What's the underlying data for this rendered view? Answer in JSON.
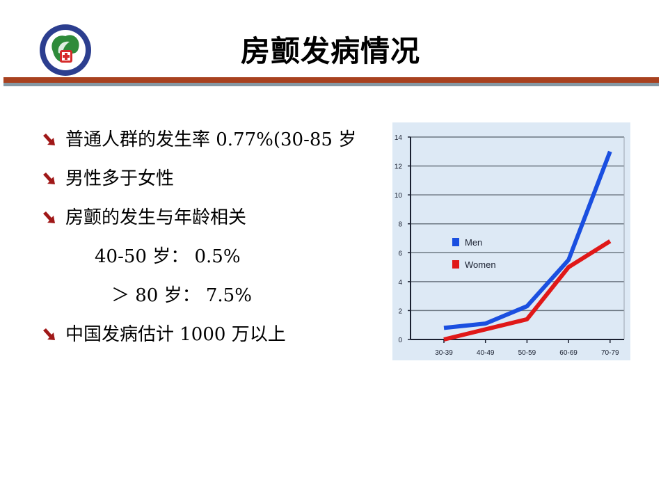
{
  "slide": {
    "title": "房颤发病情况",
    "logo": {
      "icon": "hospital-logo-icon",
      "colors": {
        "ring": "#2c3e8f",
        "leaf": "#2e8b3a",
        "cross": "#d62a2a"
      }
    },
    "divider": {
      "top_color": "#a8411f",
      "bottom_color": "#8598a4"
    },
    "bullets": [
      {
        "type": "bullet",
        "text": "普通人群的发生率 0.77%(30-85 岁"
      },
      {
        "type": "bullet",
        "text": "男性多于女性"
      },
      {
        "type": "bullet",
        "text": "房颤的发生与年龄相关"
      },
      {
        "type": "sub",
        "text": "40-50 岁：  0.5%"
      },
      {
        "type": "sub",
        "text": "＞ 80 岁：  7.5%"
      },
      {
        "type": "bullet",
        "text": "中国发病估计 1000 万以上"
      }
    ],
    "bullet_icon": "arrow-down-right-icon",
    "bullet_color": "#a01818"
  },
  "chart_data": {
    "type": "line",
    "title": "",
    "xlabel": "",
    "ylabel": "",
    "categories": [
      "30-39",
      "40-49",
      "50-59",
      "60-69",
      "70-79"
    ],
    "series": [
      {
        "name": "Men",
        "color": "#1a4fe0",
        "values": [
          0.8,
          1.1,
          2.3,
          5.5,
          13.0
        ]
      },
      {
        "name": "Women",
        "color": "#e01818",
        "values": [
          0.0,
          0.7,
          1.4,
          5.0,
          6.8
        ]
      }
    ],
    "yticks": [
      "0",
      "2",
      "4",
      "6",
      "8",
      "10",
      "12",
      "14"
    ],
    "ylim": [
      0,
      14
    ],
    "grid": true,
    "legend_position": "inside-left-middle",
    "background": "#dde9f5"
  }
}
